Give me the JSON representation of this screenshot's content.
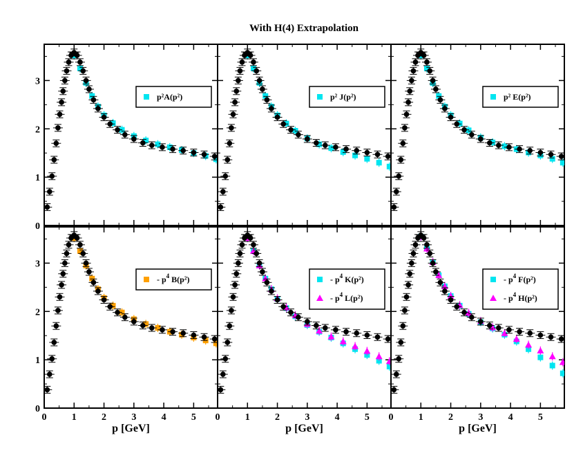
{
  "chart_data": {
    "type": "scatter",
    "title": "With H(4) Extrapolation",
    "xlabel": "p [GeV]",
    "xlim": [
      0,
      5.8
    ],
    "ylim": [
      0,
      3.75
    ],
    "x_ticks": [
      "0",
      "1",
      "2",
      "3",
      "4",
      "5"
    ],
    "y_ticks": [
      "0",
      "1",
      "2",
      "3"
    ],
    "reference_series": {
      "name": "black circles (with error bars)",
      "color": "#000000",
      "x": [
        0.1,
        0.18,
        0.26,
        0.33,
        0.4,
        0.46,
        0.52,
        0.58,
        0.63,
        0.69,
        0.75,
        0.82,
        0.9,
        1.0,
        1.1,
        1.2,
        1.3,
        1.4,
        1.5,
        1.65,
        1.8,
        2.0,
        2.2,
        2.45,
        2.7,
        3.0,
        3.3,
        3.6,
        3.95,
        4.3,
        4.65,
        5.0,
        5.35,
        5.7
      ],
      "y": [
        0.38,
        0.7,
        1.02,
        1.36,
        1.7,
        2.02,
        2.3,
        2.55,
        2.78,
        3.0,
        3.2,
        3.38,
        3.52,
        3.58,
        3.52,
        3.38,
        3.2,
        3.0,
        2.82,
        2.6,
        2.42,
        2.24,
        2.1,
        1.98,
        1.88,
        1.79,
        1.71,
        1.66,
        1.62,
        1.58,
        1.55,
        1.51,
        1.47,
        1.43
      ]
    },
    "panels": [
      {
        "legend": [
          {
            "prefix": "p²A(p²)",
            "exp": "",
            "suffix": "",
            "marker": "square",
            "color": "#00e5f0"
          }
        ],
        "series": [
          {
            "name": "p²A(p²)",
            "color": "#00e5f0",
            "marker": "square",
            "x": [
              1.0,
              1.2,
              1.4,
              1.6,
              1.8,
              2.0,
              2.3,
              2.6,
              3.0,
              3.4,
              3.8,
              4.2,
              4.6,
              5.0,
              5.4,
              5.75
            ],
            "y": [
              3.52,
              3.25,
              2.95,
              2.68,
              2.46,
              2.28,
              2.12,
              1.98,
              1.85,
              1.76,
              1.68,
              1.62,
              1.56,
              1.5,
              1.44,
              1.37
            ]
          }
        ]
      },
      {
        "legend": [
          {
            "prefix": "p² J(p²)",
            "exp": "",
            "suffix": "",
            "marker": "square",
            "color": "#00e5f0"
          }
        ],
        "series": [
          {
            "name": "p² J(p²)",
            "color": "#00e5f0",
            "marker": "square",
            "x": [
              1.0,
              1.2,
              1.4,
              1.6,
              1.8,
              2.0,
              2.3,
              2.6,
              3.0,
              3.4,
              3.8,
              4.2,
              4.6,
              5.0,
              5.4,
              5.75
            ],
            "y": [
              3.52,
              3.25,
              2.95,
              2.68,
              2.46,
              2.28,
              2.11,
              1.96,
              1.8,
              1.68,
              1.6,
              1.52,
              1.45,
              1.38,
              1.3,
              1.22
            ]
          }
        ]
      },
      {
        "legend": [
          {
            "prefix": "p² E(p²)",
            "exp": "",
            "suffix": "",
            "marker": "square",
            "color": "#00e5f0"
          }
        ],
        "series": [
          {
            "name": "p² E(p²)",
            "color": "#00e5f0",
            "marker": "square",
            "x": [
              1.0,
              1.2,
              1.4,
              1.6,
              1.8,
              2.0,
              2.3,
              2.6,
              3.0,
              3.4,
              3.8,
              4.2,
              4.6,
              5.0,
              5.4,
              5.75
            ],
            "y": [
              3.52,
              3.25,
              2.95,
              2.68,
              2.46,
              2.28,
              2.11,
              1.97,
              1.82,
              1.72,
              1.64,
              1.58,
              1.51,
              1.45,
              1.38,
              1.3
            ]
          }
        ]
      },
      {
        "legend": [
          {
            "prefix": "- p",
            "exp": "4",
            "suffix": " B(p²)",
            "marker": "square",
            "color": "#ffa000"
          }
        ],
        "series": [
          {
            "name": "- p4 B(p²)",
            "color": "#ffa000",
            "marker": "square",
            "x": [
              1.0,
              1.2,
              1.4,
              1.6,
              1.8,
              2.0,
              2.3,
              2.6,
              3.0,
              3.4,
              3.8,
              4.2,
              4.6,
              5.0,
              5.4,
              5.75
            ],
            "y": [
              3.52,
              3.25,
              2.95,
              2.68,
              2.46,
              2.28,
              2.12,
              1.98,
              1.84,
              1.74,
              1.66,
              1.58,
              1.52,
              1.46,
              1.4,
              1.34
            ]
          }
        ]
      },
      {
        "legend": [
          {
            "prefix": "- p",
            "exp": "4",
            "suffix": " K(p²)",
            "marker": "square",
            "color": "#00e5f0"
          },
          {
            "prefix": "- p",
            "exp": "4",
            "suffix": " L(p²)",
            "marker": "triangle",
            "color": "#ff00ff"
          }
        ],
        "series": [
          {
            "name": "- p4 K(p²)",
            "color": "#00e5f0",
            "marker": "square",
            "x": [
              1.0,
              1.2,
              1.4,
              1.6,
              1.8,
              2.0,
              2.3,
              2.6,
              3.0,
              3.4,
              3.8,
              4.2,
              4.6,
              5.0,
              5.4,
              5.75
            ],
            "y": [
              3.52,
              3.25,
              2.95,
              2.68,
              2.46,
              2.26,
              2.07,
              1.9,
              1.72,
              1.58,
              1.46,
              1.34,
              1.22,
              1.1,
              0.98,
              0.86
            ]
          },
          {
            "name": "- p4 L(p²)",
            "color": "#ff00ff",
            "marker": "triangle",
            "x": [
              1.0,
              1.2,
              1.4,
              1.6,
              1.8,
              2.0,
              2.3,
              2.6,
              3.0,
              3.4,
              3.8,
              4.2,
              4.6,
              5.0,
              5.4,
              5.75
            ],
            "y": [
              3.52,
              3.25,
              2.95,
              2.68,
              2.46,
              2.27,
              2.08,
              1.92,
              1.74,
              1.6,
              1.48,
              1.38,
              1.28,
              1.18,
              1.07,
              0.97
            ]
          }
        ]
      },
      {
        "legend": [
          {
            "prefix": "- p",
            "exp": "4",
            "suffix": " F(p²)",
            "marker": "square",
            "color": "#00e5f0"
          },
          {
            "prefix": "- p",
            "exp": "4",
            "suffix": " H(p²)",
            "marker": "triangle",
            "color": "#ff00ff"
          }
        ],
        "series": [
          {
            "name": "- p4 F(p²)",
            "color": "#00e5f0",
            "marker": "square",
            "x": [
              1.0,
              1.2,
              1.4,
              1.6,
              1.8,
              2.0,
              2.3,
              2.6,
              3.0,
              3.4,
              3.8,
              4.2,
              4.6,
              5.0,
              5.4,
              5.75
            ],
            "y": [
              3.55,
              3.3,
              3.02,
              2.75,
              2.52,
              2.32,
              2.12,
              1.95,
              1.78,
              1.65,
              1.52,
              1.38,
              1.22,
              1.05,
              0.88,
              0.72
            ]
          },
          {
            "name": "- p4 H(p²)",
            "color": "#ff00ff",
            "marker": "triangle",
            "x": [
              1.0,
              1.2,
              1.4,
              1.6,
              1.8,
              2.0,
              2.3,
              2.6,
              3.0,
              3.4,
              3.8,
              4.2,
              4.6,
              5.0,
              5.4,
              5.75
            ],
            "y": [
              3.55,
              3.3,
              3.02,
              2.75,
              2.52,
              2.32,
              2.13,
              1.97,
              1.8,
              1.67,
              1.55,
              1.43,
              1.31,
              1.19,
              1.07,
              0.95
            ]
          }
        ]
      }
    ]
  }
}
